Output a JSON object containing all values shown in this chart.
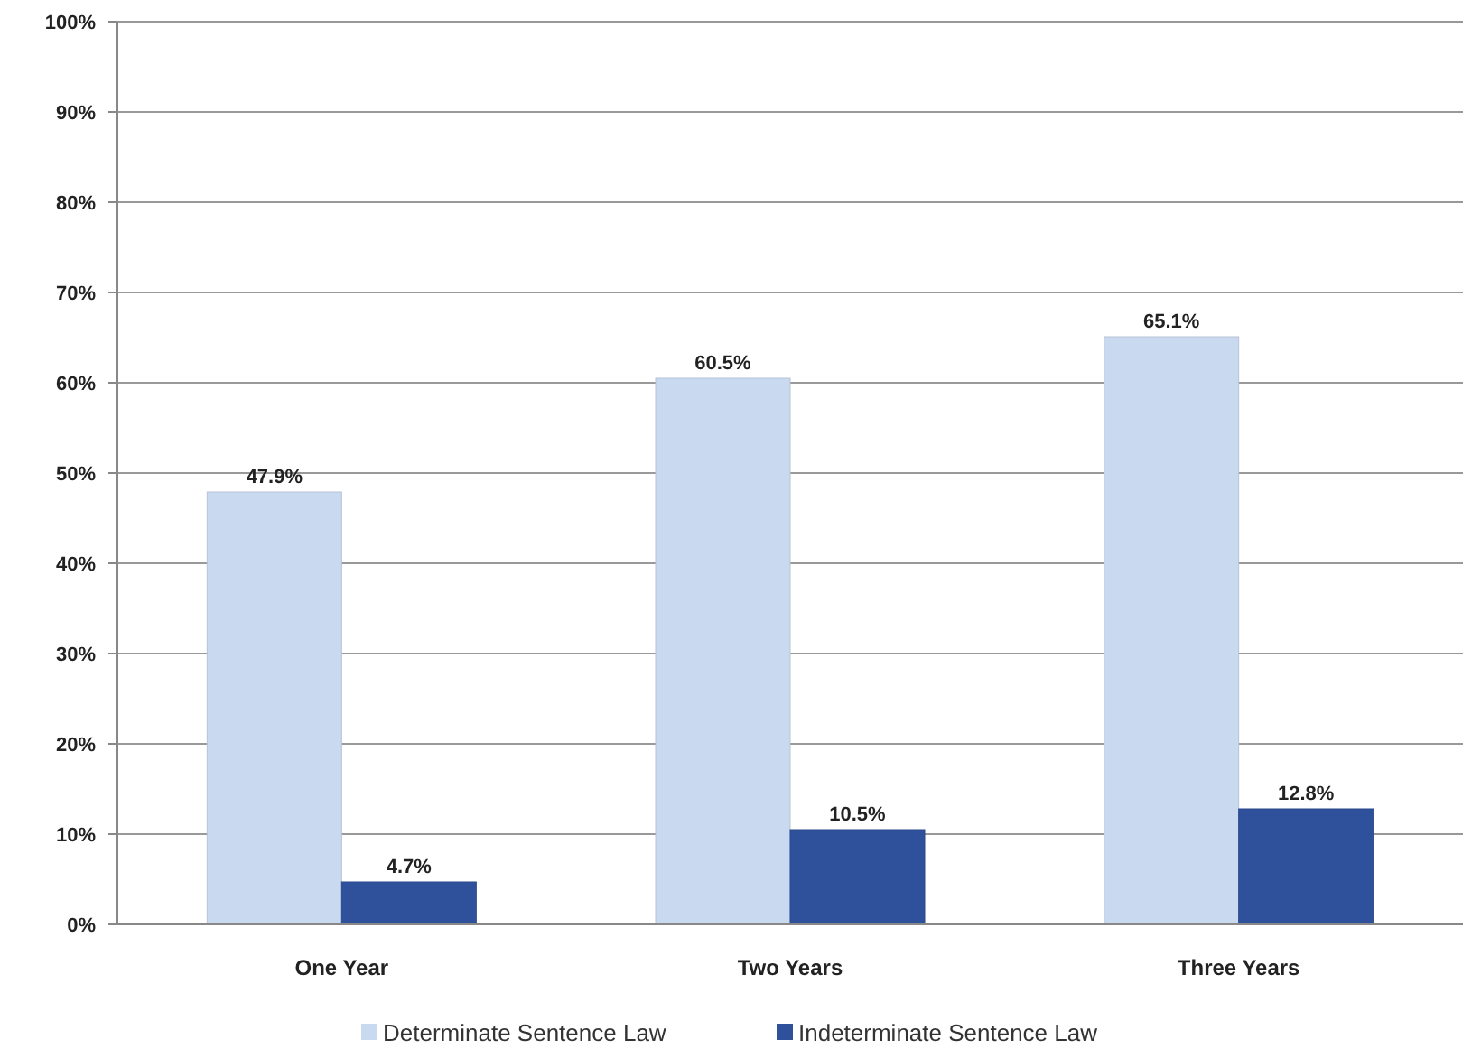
{
  "chart_data": {
    "type": "bar",
    "categories": [
      "One Year",
      "Two Years",
      "Three Years"
    ],
    "series": [
      {
        "name": "Determinate Sentence Law",
        "color": "#c9d9ef",
        "values": [
          47.9,
          60.5,
          65.1
        ],
        "value_labels": [
          "47.9%",
          "60.5%",
          "65.1%"
        ]
      },
      {
        "name": "Indeterminate Sentence Law",
        "color": "#2f519c",
        "values": [
          4.7,
          10.5,
          12.8
        ],
        "value_labels": [
          "4.7%",
          "10.5%",
          "12.8%"
        ]
      }
    ],
    "ylim": [
      0,
      100
    ],
    "yticks": [
      {
        "value": 0,
        "label": "0%"
      },
      {
        "value": 10,
        "label": "10%"
      },
      {
        "value": 20,
        "label": "20%"
      },
      {
        "value": 30,
        "label": "30%"
      },
      {
        "value": 40,
        "label": "40%"
      },
      {
        "value": 50,
        "label": "50%"
      },
      {
        "value": 60,
        "label": "60%"
      },
      {
        "value": 70,
        "label": "70%"
      },
      {
        "value": 80,
        "label": "80%"
      },
      {
        "value": 90,
        "label": "90%"
      },
      {
        "value": 100,
        "label": "100%"
      }
    ],
    "grid": "y",
    "legend": "bottom"
  }
}
